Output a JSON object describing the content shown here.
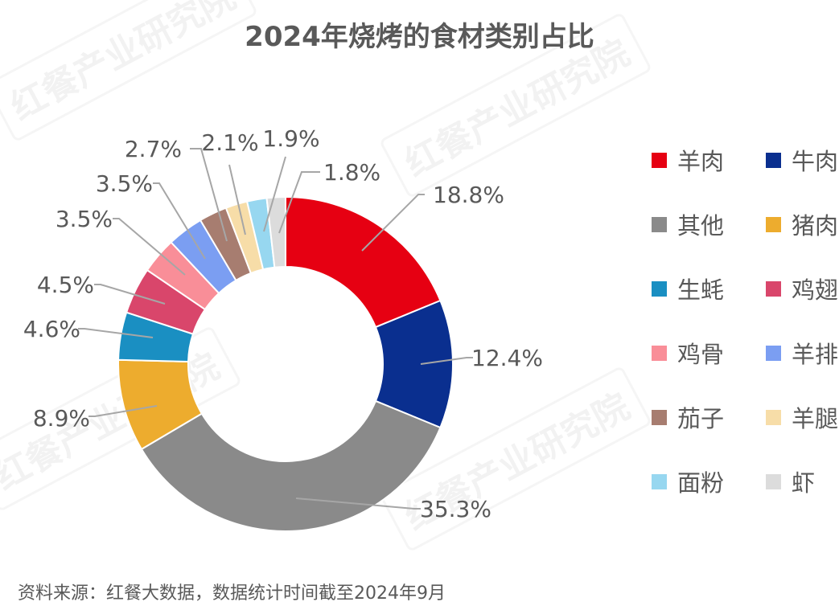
{
  "title": "2024年烧烤的食材类别占比",
  "watermark": "红餐产业研究院",
  "source": "资料来源：红餐大数据，数据统计时间截至2024年9月",
  "chart_data": {
    "type": "pie",
    "donut": true,
    "title": "2024年烧烤的食材类别占比",
    "legend_position": "right",
    "unit": "%",
    "categories": [
      "羊肉",
      "牛肉",
      "其他",
      "猪肉",
      "生蚝",
      "鸡翅",
      "鸡骨",
      "羊排",
      "茄子",
      "羊腿",
      "面粉",
      "虾"
    ],
    "values": [
      18.8,
      12.4,
      35.3,
      8.9,
      4.6,
      4.5,
      3.5,
      3.5,
      2.7,
      2.1,
      1.9,
      1.8
    ],
    "labels": [
      "18.8%",
      "12.4%",
      "35.3%",
      "8.9%",
      "4.6%",
      "4.5%",
      "3.5%",
      "3.5%",
      "2.7%",
      "2.1%",
      "1.9%",
      "1.8%"
    ],
    "colors": [
      "#E60012",
      "#0A2F8F",
      "#8A8A8A",
      "#EDAC2E",
      "#1A8FC2",
      "#D9466B",
      "#F98E98",
      "#7B9EF2",
      "#A77D70",
      "#F7DDA8",
      "#97D7F0",
      "#DCDCDC"
    ]
  }
}
